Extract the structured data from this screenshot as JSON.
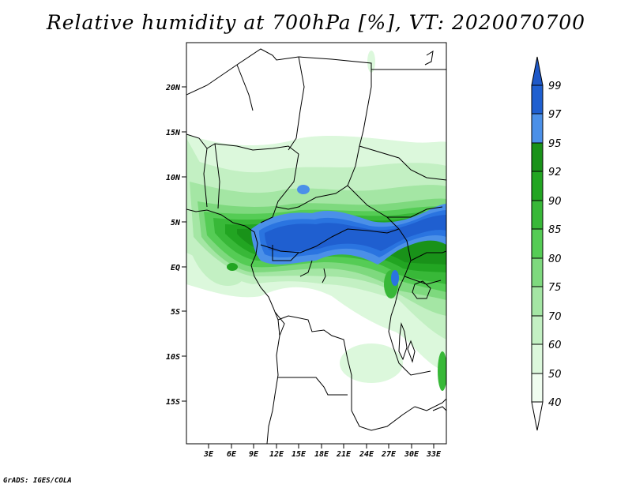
{
  "title": "Relative humidity at 700hPa [%], VT: 2020070700",
  "credit": "GrADS: IGES/COLA",
  "map": {
    "lat_labels": [
      "20N",
      "15N",
      "10N",
      "5N",
      "EQ",
      "5S",
      "10S",
      "15S"
    ],
    "lon_labels": [
      "3E",
      "6E",
      "9E",
      "12E",
      "15E",
      "18E",
      "21E",
      "24E",
      "27E",
      "30E",
      "33E"
    ],
    "lat_range": [
      -19.5,
      24.5
    ],
    "lon_range": [
      0,
      34.5
    ]
  },
  "colorbar": {
    "levels": [
      "99",
      "97",
      "95",
      "92",
      "90",
      "85",
      "80",
      "75",
      "70",
      "60",
      "50",
      "40"
    ],
    "colors": [
      "#1f5fd0",
      "#2a74e0",
      "#4b90e8",
      "#199219",
      "#22a522",
      "#38b838",
      "#55cc55",
      "#7ed97e",
      "#a4e6a4",
      "#c3f0c3",
      "#dcf8dc",
      "#f0fdf0"
    ],
    "top_color": "#1e58c8",
    "bottom_color": "#ffffff"
  },
  "colors": {
    "land_border": "#000000",
    "background": "#ffffff"
  }
}
